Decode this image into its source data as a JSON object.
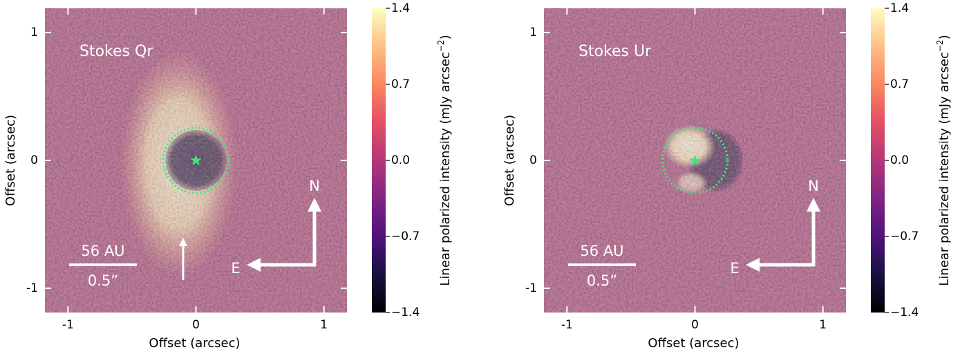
{
  "chart_data": [
    {
      "type": "image",
      "title": "Stokes Qr",
      "xlabel": "Offset (arcsec)",
      "ylabel": "Offset (arcsec)",
      "xlim": [
        -1.18,
        1.18
      ],
      "ylim": [
        -1.19,
        1.19
      ],
      "xticks": [
        -1,
        0,
        1
      ],
      "yticks": [
        -1,
        0,
        1
      ],
      "colormap": "magma",
      "colorbar": {
        "label": "Linear polarized intensity (mJy arcsec",
        "label_exponent": "−2",
        "label_end": ")",
        "lim": [
          -1.4,
          1.4
        ],
        "ticks": [
          {
            "value": 1.4,
            "label": "1.4"
          },
          {
            "value": 0.7,
            "label": "0.7"
          },
          {
            "value": 0,
            "label": "0.0"
          },
          {
            "value": -0.7,
            "label": "−0.7"
          },
          {
            "value": -1.4,
            "label": "−1.4"
          }
        ]
      },
      "scale_bar": {
        "top": "56 AU",
        "bottom": "0.5”"
      },
      "north": "N",
      "east": "E"
    },
    {
      "type": "image",
      "title": "Stokes Ur",
      "xlabel": "Offset (arcsec)",
      "ylabel": "Offset (arcsec)",
      "xlim": [
        -1.18,
        1.18
      ],
      "ylim": [
        -1.19,
        1.19
      ],
      "xticks": [
        -1,
        0,
        1
      ],
      "yticks": [
        -1,
        0,
        1
      ],
      "colormap": "magma",
      "colorbar": {
        "label": "Linear polarized intensity (mJy arcsec",
        "label_exponent": "−2",
        "label_end": ")",
        "lim": [
          -1.4,
          1.4
        ],
        "ticks": [
          {
            "value": 1.4,
            "label": "1.4"
          },
          {
            "value": 0.7,
            "label": "0.7"
          },
          {
            "value": 0,
            "label": "0.0"
          },
          {
            "value": -0.7,
            "label": "−0.7"
          },
          {
            "value": -1.4,
            "label": "−1.4"
          }
        ]
      },
      "scale_bar": {
        "top": "56 AU",
        "bottom": "0.5”"
      },
      "north": "N",
      "east": "E"
    }
  ]
}
